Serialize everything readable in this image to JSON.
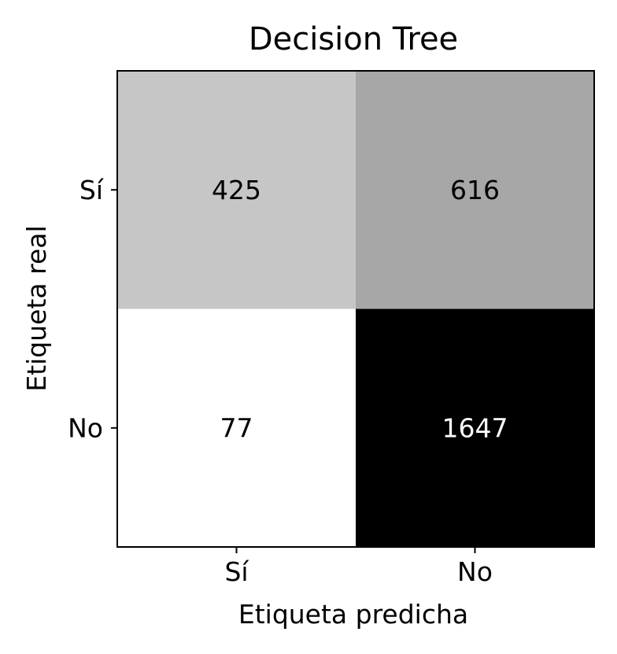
{
  "chart_data": {
    "type": "heatmap",
    "title": "Decision Tree",
    "xlabel": "Etiqueta predicha",
    "ylabel": "Etiqueta real",
    "x_categories": [
      "Sí",
      "No"
    ],
    "y_categories": [
      "Sí",
      "No"
    ],
    "values": [
      [
        425,
        616
      ],
      [
        77,
        1647
      ]
    ],
    "colormap": {
      "low": "#ffffff",
      "high": "#000000"
    },
    "grid": false,
    "legend": "none"
  },
  "colors": {
    "text_dark": "#000000",
    "text_light": "#ffffff",
    "frame": "#000000"
  }
}
